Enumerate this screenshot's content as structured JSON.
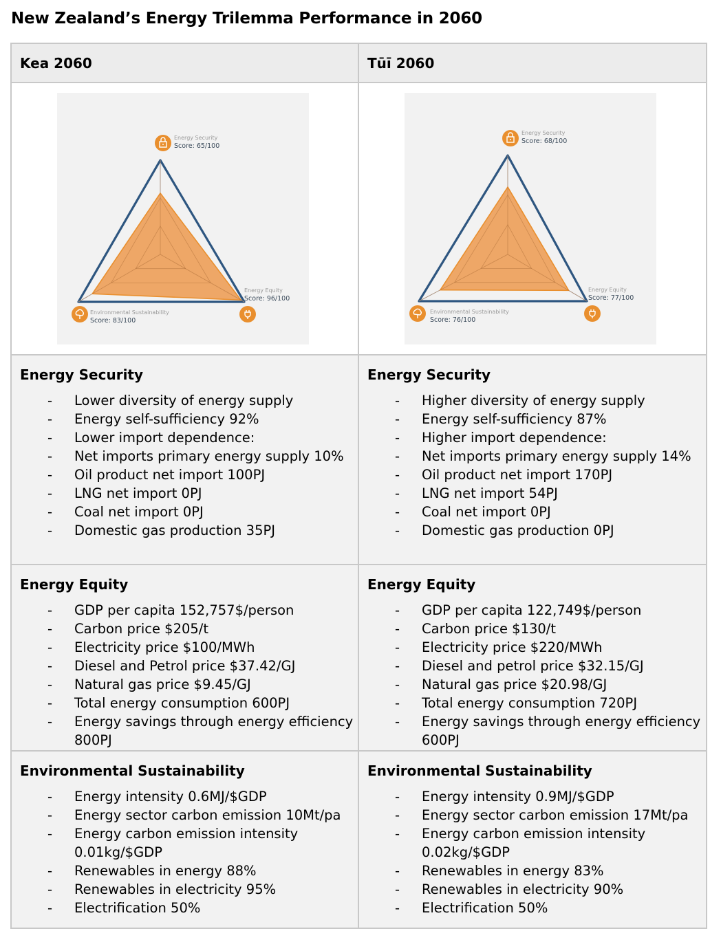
{
  "title": "New Zealand’s Energy Trilemma Performance in 2060",
  "colors": {
    "accent_orange": "#e98f2e",
    "fill_orange": "#eea15b",
    "outline_blue": "#2e5680",
    "cell_grey": "#f2f2f2",
    "header_grey": "#ececec"
  },
  "columns": [
    {
      "header": "Kea 2060",
      "chart": {
        "labels": {
          "security_name": "Energy Security",
          "security_score": "Score: 65/100",
          "equity_name": "Energy Equity",
          "equity_score": "Score: 96/100",
          "env_name": "Environmental Sustainability",
          "env_score": "Score: 83/100"
        },
        "icons": {
          "security": "lock-icon",
          "equity": "plug-icon",
          "env": "tree-icon"
        }
      },
      "chart_data": {
        "type": "radar",
        "axes": [
          "Energy Security",
          "Energy Equity",
          "Environmental Sustainability"
        ],
        "values": [
          65,
          96,
          83
        ],
        "max": 100
      },
      "security": {
        "title": "Energy Security",
        "items": [
          "Lower diversity of energy supply",
          "Energy self-sufficiency 92%",
          "Lower import dependence:",
          "Net imports primary energy supply 10%",
          "Oil product net import 100PJ",
          "LNG net import 0PJ",
          "Coal net import 0PJ",
          "Domestic gas production 35PJ"
        ]
      },
      "equity": {
        "title": "Energy Equity",
        "items": [
          "GDP per capita 152,757$/person",
          "Carbon price $205/t",
          "Electricity price $100/MWh",
          "Diesel and Petrol price $37.42/GJ",
          "Natural gas price $9.45/GJ",
          "Total energy consumption 600PJ",
          "Energy savings through energy efficiency 800PJ"
        ]
      },
      "sustainability": {
        "title": "Environmental Sustainability",
        "items": [
          "Energy intensity 0.6MJ/$GDP",
          "Energy sector carbon emission 10Mt/pa",
          "Energy carbon emission intensity 0.01kg/$GDP",
          "Renewables in energy 88%",
          "Renewables in electricity 95%",
          "Electrification 50%"
        ]
      }
    },
    {
      "header": "Tūī 2060",
      "chart": {
        "labels": {
          "security_name": "Energy Security",
          "security_score": "Score: 68/100",
          "equity_name": "Energy Equity",
          "equity_score": "Score: 77/100",
          "env_name": "Environmental Sustainability",
          "env_score": "Score: 76/100"
        },
        "icons": {
          "security": "lock-icon",
          "equity": "plug-icon",
          "env": "tree-icon"
        }
      },
      "chart_data": {
        "type": "radar",
        "axes": [
          "Energy Security",
          "Energy Equity",
          "Environmental Sustainability"
        ],
        "values": [
          68,
          77,
          76
        ],
        "max": 100
      },
      "security": {
        "title": "Energy Security",
        "items": [
          "Higher diversity of energy supply",
          "Energy self-sufficiency 87%",
          "Higher import dependence:",
          "Net imports primary energy supply 14%",
          "Oil product net import 170PJ",
          "LNG net import 54PJ",
          "Coal net import 0PJ",
          "Domestic gas production 0PJ"
        ]
      },
      "equity": {
        "title": "Energy Equity",
        "items": [
          "GDP per capita 122,749$/person",
          "Carbon price $130/t",
          "Electricity price $220/MWh",
          "Diesel and petrol price $32.15/GJ",
          "Natural gas price $20.98/GJ",
          "Total energy consumption 720PJ",
          "Energy savings through energy efficiency 600PJ"
        ]
      },
      "sustainability": {
        "title": "Environmental Sustainability",
        "items": [
          "Energy intensity 0.9MJ/$GDP",
          "Energy sector carbon emission 17Mt/pa",
          "Energy carbon emission intensity 0.02kg/$GDP",
          "Renewables in energy 83%",
          "Renewables in electricity 90%",
          "Electrification 50%"
        ]
      }
    }
  ]
}
